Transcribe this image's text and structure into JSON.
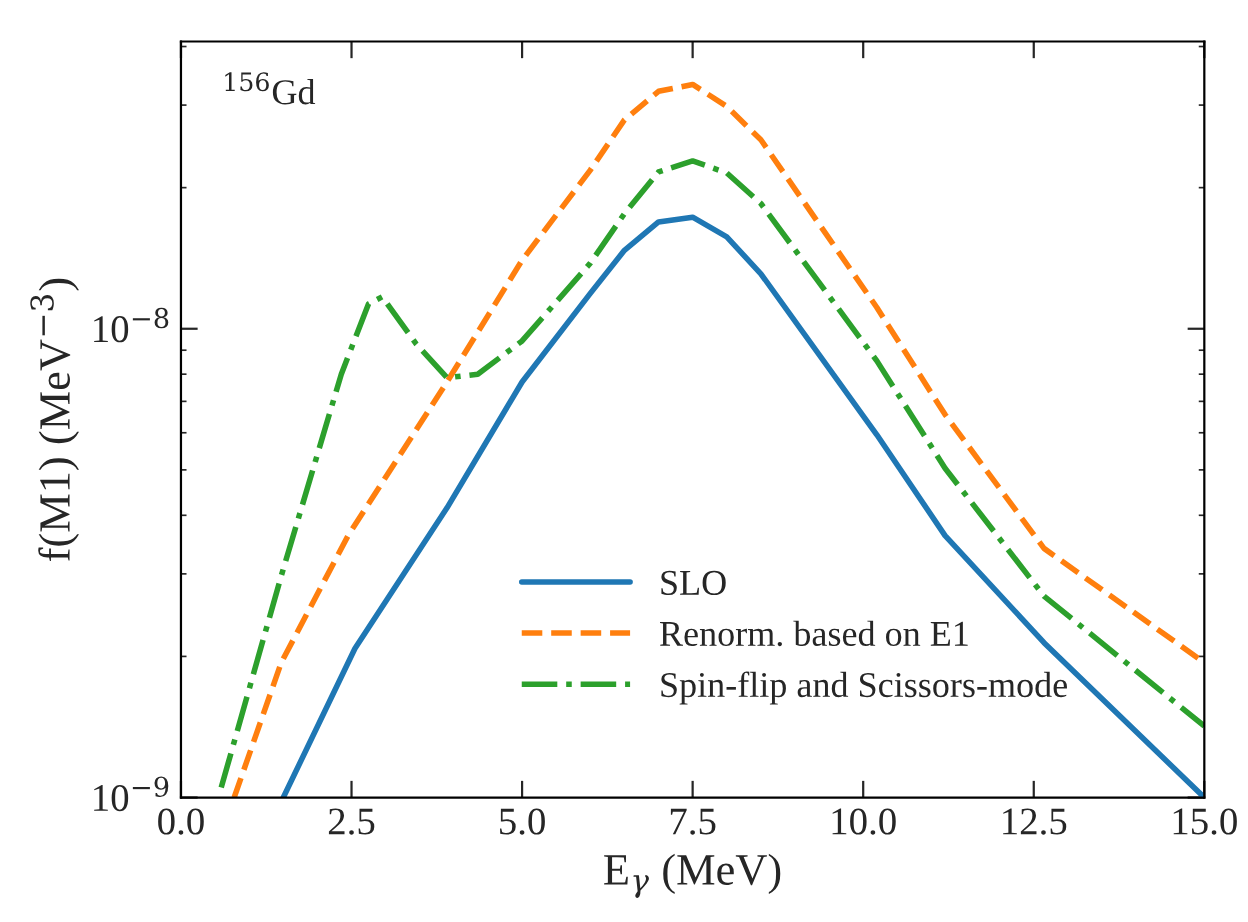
{
  "chart_data": {
    "type": "line",
    "xlabel": "E$_{γ}$ (MeV)",
    "ylabel": "f(M1) (MeV$^{−3}$)",
    "annotations": [
      "$^{156}$Gd"
    ],
    "xlim": [
      0,
      15
    ],
    "ylim": [
      1e-09,
      4.1e-08
    ],
    "log": "y",
    "xticks": [
      {
        "value": 0,
        "label": "0.0"
      },
      {
        "value": 2.5,
        "label": "2.5"
      },
      {
        "value": 5,
        "label": "5.0"
      },
      {
        "value": 7.5,
        "label": "7.5"
      },
      {
        "value": 10,
        "label": "10.0"
      },
      {
        "value": 12.5,
        "label": "12.5"
      },
      {
        "value": 15,
        "label": "15.0"
      }
    ],
    "yticks": [
      {
        "value": 1e-09,
        "label": "10$^{−9}$"
      },
      {
        "value": 1e-08,
        "label": "10$^{−8}$"
      }
    ],
    "grid": false,
    "legend": "bottom",
    "series": [
      {
        "name": "SLO",
        "color": "#1f77b4",
        "line_style": "solid",
        "x": [
          1.5,
          2.55,
          3.9,
          5.0,
          6.0,
          6.5,
          7.0,
          7.5,
          8.0,
          8.5,
          10.2,
          11.2,
          12.65,
          15
        ],
        "values": [
          1e-09,
          2.08e-09,
          4.15e-09,
          7.7e-09,
          1.19e-08,
          1.47e-08,
          1.69e-08,
          1.73e-08,
          1.57e-08,
          1.31e-08,
          5.94e-09,
          3.62e-09,
          2.14e-09,
          1e-09
        ]
      },
      {
        "name": "Renorm. based on E1",
        "color": "#ff7f0e",
        "line_style": "dashed",
        "x": [
          0.78,
          1.47,
          2.45,
          3.9,
          5.0,
          6.0,
          6.5,
          7.0,
          7.5,
          8.0,
          8.5,
          10.2,
          11.2,
          12.65,
          15
        ],
        "values": [
          1e-09,
          1.94e-09,
          3.62e-09,
          7.7e-09,
          1.4e-08,
          2.18e-08,
          2.79e-08,
          3.21e-08,
          3.32e-08,
          2.98e-08,
          2.53e-08,
          1.11e-08,
          6.56e-09,
          3.4e-09,
          1.94e-09
        ]
      },
      {
        "name": "Spin-flip and Scissors-mode",
        "color": "#2ca02c",
        "line_style": "dashdot",
        "x": [
          0.59,
          1.47,
          2.35,
          2.75,
          2.95,
          3.45,
          3.9,
          4.35,
          5.0,
          6.0,
          6.5,
          7.0,
          7.5,
          8.0,
          8.5,
          10.2,
          11.2,
          12.65,
          15
        ],
        "values": [
          1.05e-09,
          2.97e-09,
          8e-09,
          1.13e-08,
          1.17e-08,
          9.27e-09,
          7.86e-09,
          8e-09,
          9.42e-09,
          1.38e-08,
          1.76e-08,
          2.16e-08,
          2.28e-08,
          2.15e-08,
          1.85e-08,
          8.54e-09,
          5.04e-09,
          2.69e-09,
          1.42e-09
        ]
      }
    ]
  }
}
